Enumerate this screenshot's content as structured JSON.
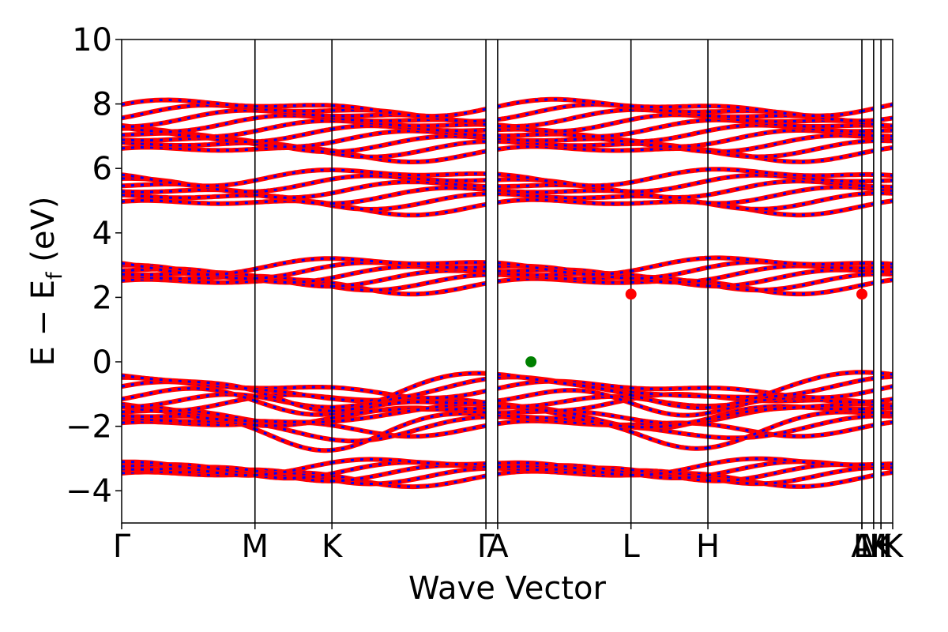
{
  "chart_data": {
    "type": "line",
    "title": "",
    "xlabel": "Wave Vector",
    "ylabel": "E − E",
    "ylabel_sub": "f",
    "ylabel_unit": " (eV)",
    "ylim": [
      -5,
      10
    ],
    "xlim": [
      0,
      5.783
    ],
    "yticks": [
      {
        "value": -4,
        "label": "−4"
      },
      {
        "value": -2,
        "label": "−2"
      },
      {
        "value": 0,
        "label": "0"
      },
      {
        "value": 2,
        "label": "2"
      },
      {
        "value": 4,
        "label": "4"
      },
      {
        "value": 6,
        "label": "6"
      },
      {
        "value": 8,
        "label": "8"
      },
      {
        "value": 10,
        "label": "10"
      }
    ],
    "kpoints": [
      {
        "label": "Γ",
        "x": 0.0
      },
      {
        "label": "M",
        "x": 1.0
      },
      {
        "label": "K",
        "x": 1.577
      },
      {
        "label": "Γ",
        "x": 2.732
      },
      {
        "label": "A",
        "x": 2.82
      },
      {
        "label": "L",
        "x": 3.82
      },
      {
        "label": "H",
        "x": 4.397
      },
      {
        "label": "A",
        "x": 5.552
      },
      {
        "label": "L",
        "x": 5.552
      },
      {
        "label": "M",
        "x": 5.64
      },
      {
        "label": "K",
        "x": 5.695
      },
      {
        "label": "H",
        "x": 5.695
      },
      {
        "label": "K",
        "x": 5.783
      }
    ],
    "vlines": [
      1.0,
      1.577,
      2.732,
      2.82,
      3.82,
      4.397,
      5.552,
      5.64,
      5.695
    ],
    "band_groups": [
      {
        "name": "valence-low",
        "base": -3.4,
        "count": 5,
        "spread": 0.35
      },
      {
        "name": "valence-upper",
        "base": -1.3,
        "count": 12,
        "spread": 1.3
      },
      {
        "name": "conduction-1",
        "base": 2.7,
        "count": 6,
        "spread": 0.6
      },
      {
        "name": "conduction-2",
        "base": 5.3,
        "count": 6,
        "spread": 0.9
      },
      {
        "name": "conduction-3",
        "base": 7.2,
        "count": 10,
        "spread": 1.4
      }
    ],
    "vbm": {
      "x": 3.07,
      "y": 0.0
    },
    "cbm": [
      {
        "x": 3.82,
        "y": 2.1
      },
      {
        "x": 5.552,
        "y": 2.1
      }
    ],
    "colors": {
      "spin_up": "#ff0000",
      "spin_down": "#0000ff",
      "vbm": "#008000",
      "cbm": "#ff0000",
      "kline": "#000000"
    }
  }
}
